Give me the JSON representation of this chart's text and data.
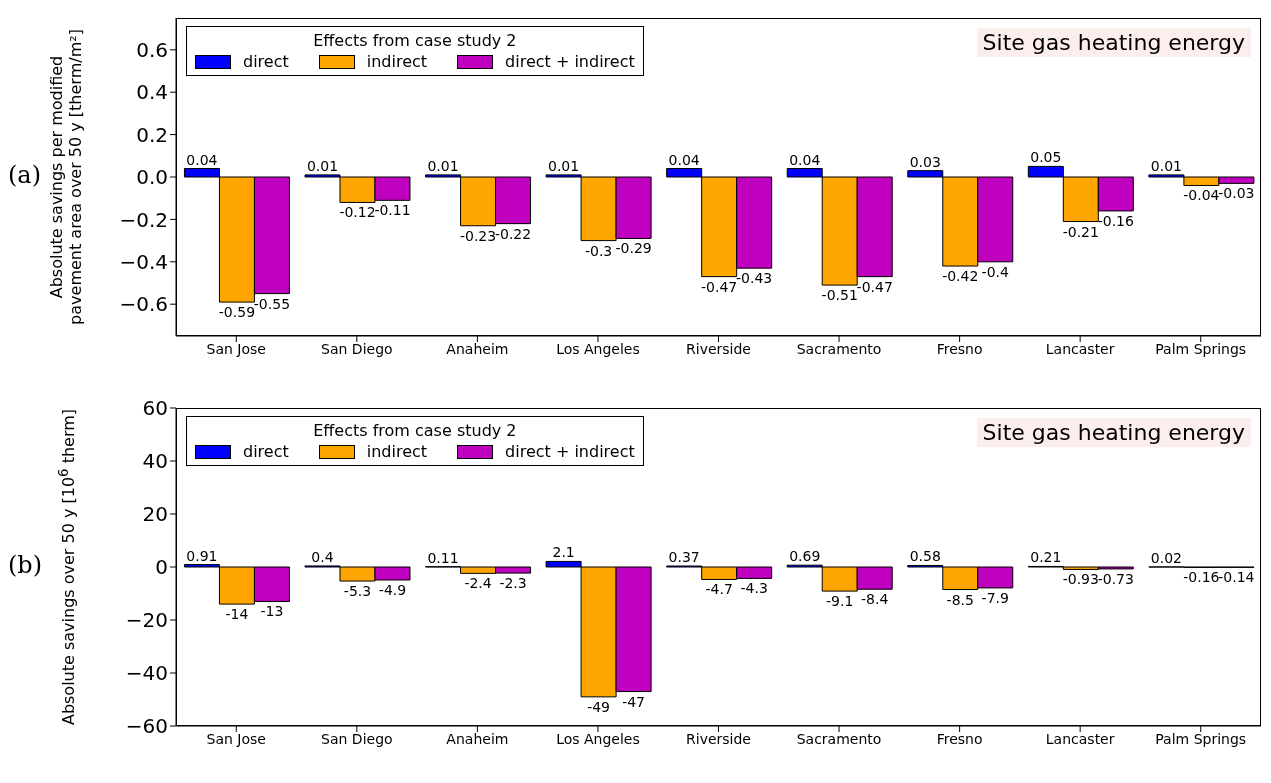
{
  "chart_data": [
    {
      "type": "bar",
      "title": "Site gas heating energy",
      "ylabel": "Absolute savings per modified pavement area over 50 y [therm/m²]",
      "legend_title": "Effects from case study 2",
      "annotations": [
        "(a)"
      ],
      "categories": [
        "San Jose",
        "San Diego",
        "Anaheim",
        "Los Angeles",
        "Riverside",
        "Sacramento",
        "Fresno",
        "Lancaster",
        "Palm Springs"
      ],
      "series": [
        {
          "name": "direct",
          "color": "#0000ff",
          "values": [
            0.04,
            0.01,
            0.01,
            0.01,
            0.04,
            0.04,
            0.03,
            0.05,
            0.01
          ]
        },
        {
          "name": "indirect",
          "color": "#ffa500",
          "values": [
            -0.59,
            -0.12,
            -0.23,
            -0.3,
            -0.47,
            -0.51,
            -0.42,
            -0.21,
            -0.04
          ]
        },
        {
          "name": "direct + indirect",
          "color": "#bf00bf",
          "values": [
            -0.55,
            -0.11,
            -0.22,
            -0.29,
            -0.43,
            -0.47,
            -0.4,
            -0.16,
            -0.03
          ]
        }
      ],
      "ylim": [
        -0.75,
        0.75
      ],
      "yticks": [
        {
          "value": -0.6,
          "label": "−0.6"
        },
        {
          "value": -0.4,
          "label": "−0.4"
        },
        {
          "value": -0.2,
          "label": "−0.2"
        },
        {
          "value": 0,
          "label": "0.0"
        },
        {
          "value": 0.2,
          "label": "0.2"
        },
        {
          "value": 0.4,
          "label": "0.4"
        },
        {
          "value": 0.6,
          "label": "0.6"
        }
      ],
      "grid": false,
      "legend": "top left",
      "data_labels": true
    },
    {
      "type": "bar",
      "title": "Site gas heating energy",
      "ylabel": "Absolute savings over 50 y [10$^{6}$ therm]",
      "legend_title": "Effects from case study 2",
      "annotations": [
        "(b)"
      ],
      "categories": [
        "San Jose",
        "San Diego",
        "Anaheim",
        "Los Angeles",
        "Riverside",
        "Sacramento",
        "Fresno",
        "Lancaster",
        "Palm Springs"
      ],
      "series": [
        {
          "name": "direct",
          "color": "#0000ff",
          "values": [
            0.91,
            0.4,
            0.11,
            2.1,
            0.37,
            0.69,
            0.58,
            0.21,
            0.02
          ]
        },
        {
          "name": "indirect",
          "color": "#ffa500",
          "values": [
            -14,
            -5.3,
            -2.4,
            -49,
            -4.7,
            -9.1,
            -8.5,
            -0.93,
            -0.16
          ]
        },
        {
          "name": "direct + indirect",
          "color": "#bf00bf",
          "values": [
            -13,
            -4.9,
            -2.3,
            -47,
            -4.3,
            -8.4,
            -7.9,
            -0.73,
            -0.14
          ]
        }
      ],
      "ylim": [
        -60,
        60
      ],
      "yticks": [
        {
          "value": -60,
          "label": "−60"
        },
        {
          "value": -40,
          "label": "−40"
        },
        {
          "value": -20,
          "label": "−20"
        },
        0,
        20,
        40,
        60
      ],
      "grid": false,
      "legend": "top left",
      "data_labels": true
    }
  ]
}
